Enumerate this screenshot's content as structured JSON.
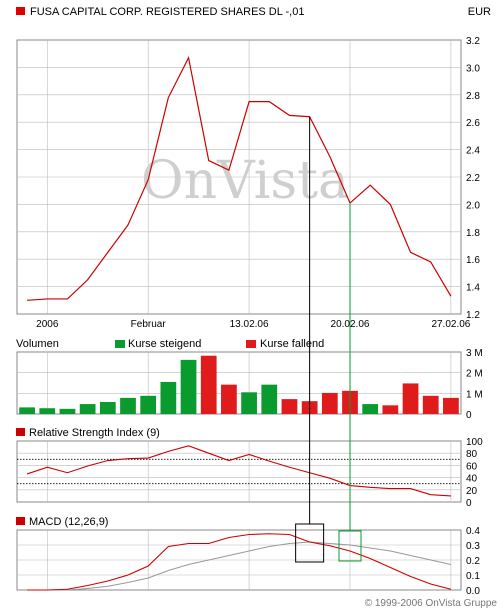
{
  "header": {
    "title": "FUSA CAPITAL CORP. REGISTERED SHARES DL -,01",
    "currency": "EUR",
    "series_color": "#e00000"
  },
  "watermark": "OnVista",
  "copyright": "© 1999-2006 OnVista Gruppe",
  "colors": {
    "price": "#cc0000",
    "up": "#0a9b2e",
    "down": "#e01b1b",
    "signal": "#999999",
    "grid": "#bbbbbb",
    "marker_black": "#000000",
    "marker_green": "#0a9b2e"
  },
  "chart_data": [
    {
      "type": "line",
      "title": "FUSA CAPITAL CORP. REGISTERED SHARES DL -,01",
      "ylabel": "EUR",
      "ylim": [
        1.2,
        3.2
      ],
      "yticks": [
        "3.2",
        "3.0",
        "2.8",
        "2.6",
        "2.4",
        "2.2",
        "2.0",
        "1.8",
        "1.6",
        "1.4",
        "1.2"
      ],
      "xtick_labels": [
        "2006",
        "Februar",
        "13.02.06",
        "20.02.06",
        "27.02.06"
      ],
      "xtick_index": [
        1,
        6,
        11,
        16,
        21
      ],
      "grid": true,
      "series": [
        {
          "values": [
            1.3,
            1.31,
            1.31,
            1.45,
            1.65,
            1.85,
            2.18,
            2.78,
            3.07,
            2.32,
            2.25,
            2.75,
            2.75,
            2.65,
            2.64,
            2.35,
            2.01,
            2.14,
            2.0,
            1.65,
            1.58,
            1.33
          ]
        }
      ]
    },
    {
      "type": "bar",
      "title": "Volumen",
      "legend": [
        "Kurse steigend",
        "Kurse fallend"
      ],
      "ylim": [
        0,
        3
      ],
      "yticks": [
        "3 M",
        "2 M",
        "1 M",
        "0"
      ],
      "values": [
        0.32,
        0.28,
        0.25,
        0.48,
        0.58,
        0.78,
        0.88,
        1.55,
        2.62,
        2.82,
        1.42,
        1.05,
        1.42,
        0.72,
        0.62,
        1.02,
        1.12,
        0.48,
        0.42,
        1.48,
        0.88,
        0.78
      ],
      "direction": [
        "up",
        "up",
        "up",
        "up",
        "up",
        "up",
        "up",
        "up",
        "up",
        "down",
        "down",
        "up",
        "up",
        "down",
        "down",
        "down",
        "down",
        "up",
        "down",
        "down",
        "down",
        "down"
      ]
    },
    {
      "type": "line",
      "title": "Relative Strength Index (9)",
      "ylim": [
        0,
        100
      ],
      "yticks": [
        "100",
        "80",
        "60",
        "40",
        "20",
        "0"
      ],
      "reference_lines": [
        30,
        70
      ],
      "series": [
        {
          "values": [
            46,
            57,
            48,
            59,
            68,
            71,
            72,
            83,
            92,
            80,
            68,
            78,
            67,
            57,
            48,
            39,
            27,
            24,
            22,
            22,
            12,
            10
          ]
        }
      ]
    },
    {
      "type": "line",
      "title": "MACD (12,26,9)",
      "ylim": [
        0,
        0.4
      ],
      "yticks": [
        "0.4",
        "0.3",
        "0.2",
        "0.1",
        "0.0"
      ],
      "series": [
        {
          "values": [
            0.0,
            0.0,
            0.005,
            0.03,
            0.06,
            0.1,
            0.16,
            0.29,
            0.31,
            0.31,
            0.35,
            0.37,
            0.375,
            0.37,
            0.32,
            0.295,
            0.26,
            0.21,
            0.15,
            0.09,
            0.04,
            0.005
          ]
        },
        {
          "values": [
            0.0,
            0.0,
            0.0,
            0.01,
            0.025,
            0.05,
            0.08,
            0.13,
            0.17,
            0.2,
            0.23,
            0.26,
            0.29,
            0.31,
            0.32,
            0.31,
            0.3,
            0.28,
            0.26,
            0.23,
            0.2,
            0.17
          ]
        }
      ]
    }
  ],
  "markers": [
    {
      "index": 14,
      "color": "black"
    },
    {
      "index": 16,
      "color": "green"
    }
  ]
}
